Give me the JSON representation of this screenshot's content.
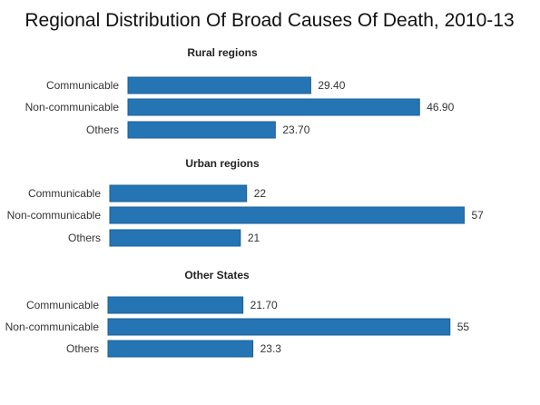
{
  "chart_title": "Regional Distribution Of Broad Causes Of Death, 2010-13",
  "colors": {
    "bar": "#2575B5",
    "bar_edge": "#1D5E93"
  },
  "chart_data": [
    {
      "type": "bar",
      "orientation": "horizontal",
      "title": "Rural regions",
      "categories": [
        "Communicable",
        "Non-communicable",
        "Others"
      ],
      "values": [
        29.4,
        46.9,
        23.7
      ],
      "value_labels": [
        "29.40",
        "46.90",
        "23.70"
      ]
    },
    {
      "type": "bar",
      "orientation": "horizontal",
      "title": "Urban regions",
      "categories": [
        "Communicable",
        "Non-communicable",
        "Others"
      ],
      "values": [
        22,
        57,
        21
      ],
      "value_labels": [
        "22",
        "57",
        "21"
      ]
    },
    {
      "type": "bar",
      "orientation": "horizontal",
      "title": "Other States",
      "categories": [
        "Communicable",
        "Non-communicable",
        "Others"
      ],
      "values": [
        21.7,
        55,
        23.3
      ],
      "value_labels": [
        "21.70",
        "55",
        "23.3"
      ]
    }
  ]
}
